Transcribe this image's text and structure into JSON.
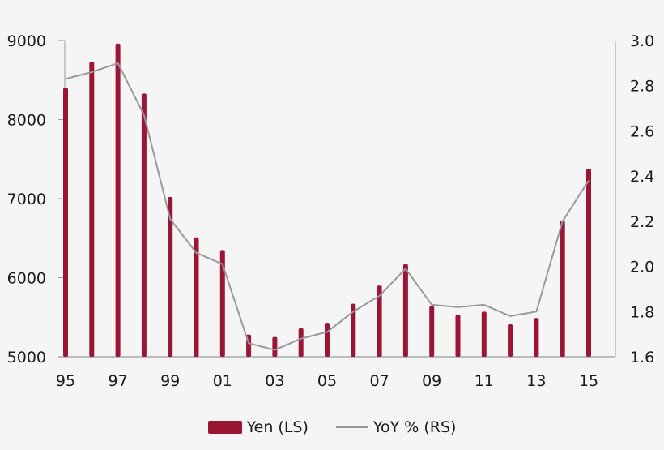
{
  "chart_data": {
    "type": "bar+line",
    "title": "",
    "xlabel": "",
    "ylabel_left": "Yen",
    "ylabel_right": "YoY %",
    "categories": [
      "95",
      "96",
      "97",
      "98",
      "99",
      "00",
      "01",
      "02",
      "03",
      "04",
      "05",
      "06",
      "07",
      "08",
      "09",
      "10",
      "11",
      "12",
      "13",
      "14",
      "15"
    ],
    "x_tick_labels": [
      "95",
      "97",
      "99",
      "01",
      "03",
      "05",
      "07",
      "09",
      "11",
      "13",
      "15"
    ],
    "series": [
      {
        "name": "Yen (LS)",
        "type": "bar",
        "axis": "left",
        "color": "#9b1535",
        "values": [
          8400,
          8730,
          8960,
          8330,
          7020,
          6510,
          6350,
          5280,
          5250,
          5360,
          5430,
          5670,
          5900,
          6170,
          5640,
          5530,
          5570,
          5410,
          5490,
          6720,
          7380
        ]
      },
      {
        "name": "YoY % (RS)",
        "type": "line",
        "axis": "right",
        "color": "#999999",
        "values": [
          2.83,
          2.86,
          2.9,
          2.67,
          2.21,
          2.06,
          2.01,
          1.66,
          1.63,
          1.68,
          1.71,
          1.8,
          1.87,
          1.99,
          1.83,
          1.82,
          1.83,
          1.78,
          1.8,
          2.2,
          2.38
        ]
      }
    ],
    "ylim_left": [
      5000,
      9000
    ],
    "yticks_left": [
      "5000",
      "6000",
      "7000",
      "8000",
      "9000"
    ],
    "ylim_right": [
      1.6,
      3.0
    ],
    "yticks_right": [
      "1.6",
      "1.8",
      "2.0",
      "2.2",
      "2.4",
      "2.6",
      "2.8",
      "3.0"
    ],
    "grid": false,
    "legend_position": "bottom"
  },
  "legend": {
    "bar_label": "Yen (LS)",
    "line_label": "YoY % (RS)"
  },
  "colors": {
    "bar": "#9b1535",
    "line": "#999999",
    "axis": "#9a9a9a",
    "background": "#f5f5f5"
  }
}
